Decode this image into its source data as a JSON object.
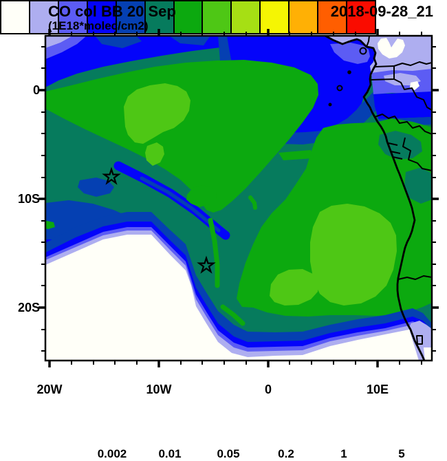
{
  "header": {
    "title": "CO col BB 20 Sep",
    "subtitle": "(1E18*molec/cm2)",
    "datetime": "2018-09-28_21"
  },
  "axes": {
    "y_labels": [
      "0",
      "10S",
      "20S"
    ],
    "x_labels": [
      "20W",
      "10W",
      "0",
      "10E"
    ]
  },
  "palette": {
    "white": "#FFFFF8",
    "lavender": "#AEAEF0",
    "violet": "#5C5CF4",
    "blue": "#0404FA",
    "darkblue": "#0540B2",
    "teal": "#067B5D",
    "green": "#0CA90F",
    "midgreen": "#4EC715",
    "yellowgreen": "#A6DF14",
    "yellow": "#F5F503",
    "orange": "#FFB005",
    "darkorange": "#FF5E00",
    "red": "#FA0C00"
  },
  "colorbar": {
    "labels": [
      "0.002",
      "0.01",
      "0.05",
      "0.2",
      "1",
      "5"
    ],
    "colors": [
      "#FFFFF8",
      "#AEAEF0",
      "#5C5CF4",
      "#0404FA",
      "#0540B2",
      "#067B5D",
      "#0CA90F",
      "#4EC715",
      "#A6DF14",
      "#F5F503",
      "#FFB005",
      "#FF5E00",
      "#FA0C00"
    ]
  },
  "chart_data": {
    "type": "filled_contour_map",
    "title": "CO col BB 20 Sep",
    "units": "1E18*molec/cm2",
    "valid_time": "2018-09-28_21",
    "region": "Southeast Atlantic / western Africa (Gulf of Guinea to Namibia)",
    "x_axis": {
      "tick_labels": [
        "20W",
        "10W",
        "0",
        "10E"
      ],
      "lon_range": [
        -20.4,
        15.0
      ],
      "minor_tick_interval_deg": 2
    },
    "y_axis": {
      "tick_labels": [
        "0",
        "10S",
        "20S"
      ],
      "lat_range": [
        -25.0,
        5.0
      ],
      "minor_tick_interval_deg": 2
    },
    "contour_levels": [
      0.001,
      0.002,
      0.005,
      0.01,
      0.02,
      0.05,
      0.1,
      0.2,
      0.5,
      1,
      2,
      5
    ],
    "labeled_levels": [
      0.002,
      0.01,
      0.05,
      0.2,
      1,
      5
    ],
    "n_color_cells": 13,
    "colors": [
      "#FFFFF8",
      "#AEAEF0",
      "#5C5CF4",
      "#0404FA",
      "#0540B2",
      "#067B5D",
      "#0CA90F",
      "#4EC715",
      "#A6DF14",
      "#F5F503",
      "#FFB005",
      "#FF5E00",
      "#FA0C00"
    ],
    "markers": [
      {
        "symbol": "open-star",
        "lon": -14.3,
        "lat": -8.0
      },
      {
        "symbol": "open-star",
        "lon": -5.7,
        "lat": -16.1
      }
    ],
    "field_summary": [
      "Minimum (<0.001) white region over the subtropical SW Atlantic, bottom-left and along the southern edge",
      "Broad 0.02-0.05 (teal) background over the tropical Atlantic",
      "0.05-0.1 (green) plume arcs from ~10W,0S toward the African coast, with 0.1-0.2 (light green) cores near 13W,3S and over Angola ~12E,10-15S",
      "Low values 0.002-0.01 (blue/violet/lavender) over the Gulf of Guinea and land areas near the equator, top-right",
      "Coastline and country borders drawn in black"
    ]
  }
}
